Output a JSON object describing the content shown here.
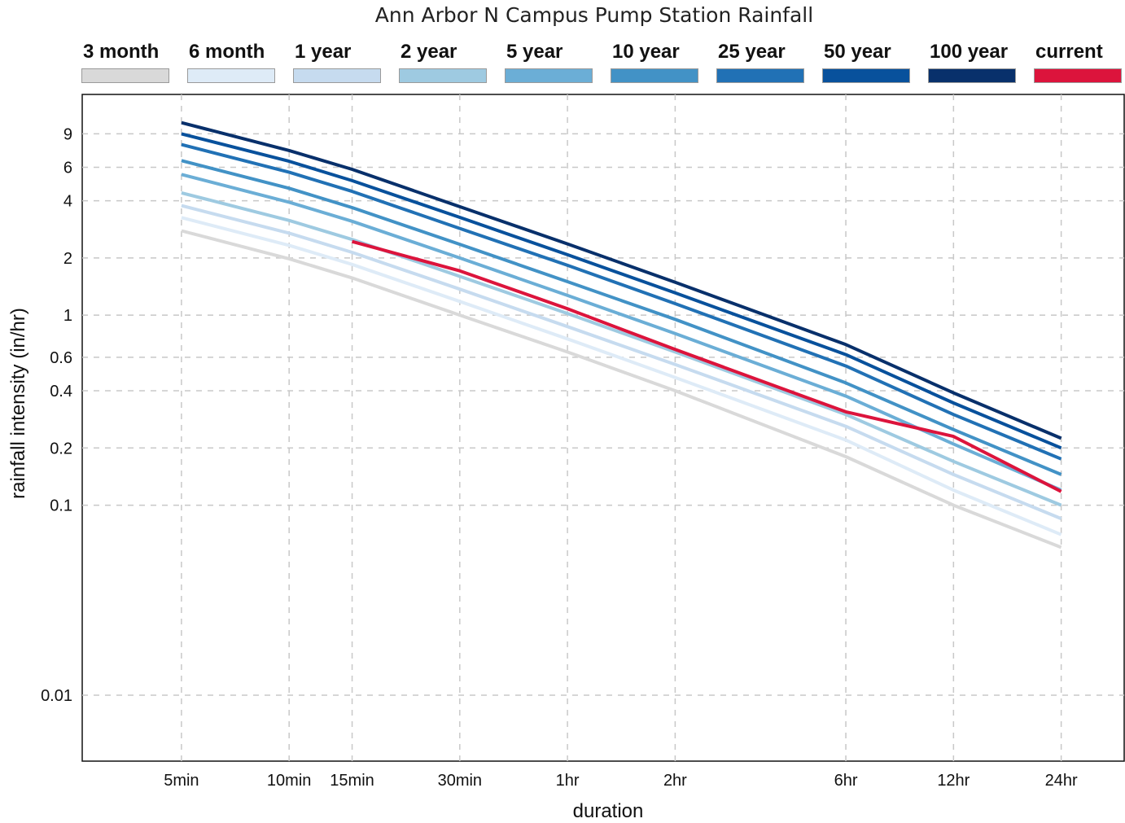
{
  "chart_data": {
    "type": "line",
    "title": "Ann Arbor N Campus Pump Station Rainfall",
    "xlabel": "duration",
    "ylabel": "rainfall intensity (in/hr)",
    "x_scale": "log",
    "y_scale": "log",
    "x_ticks": [
      {
        "label": "5min",
        "minutes": 5
      },
      {
        "label": "10min",
        "minutes": 10
      },
      {
        "label": "15min",
        "minutes": 15
      },
      {
        "label": "30min",
        "minutes": 30
      },
      {
        "label": "1hr",
        "minutes": 60
      },
      {
        "label": "2hr",
        "minutes": 120
      },
      {
        "label": "6hr",
        "minutes": 360
      },
      {
        "label": "12hr",
        "minutes": 720
      },
      {
        "label": "24hr",
        "minutes": 1440
      }
    ],
    "y_ticks": [
      {
        "label": "0.01",
        "value": 0.01
      },
      {
        "label": "0.1",
        "value": 0.1
      },
      {
        "label": "0.2",
        "value": 0.2
      },
      {
        "label": "0.4",
        "value": 0.4
      },
      {
        "label": "0.6",
        "value": 0.6
      },
      {
        "label": "1",
        "value": 1
      },
      {
        "label": "2",
        "value": 2
      },
      {
        "label": "4",
        "value": 4
      },
      {
        "label": "6",
        "value": 6
      },
      {
        "label": "9",
        "value": 9
      }
    ],
    "xlim": [
      2.64,
      2160
    ],
    "ylim": [
      0.0045,
      14.5
    ],
    "grid": true,
    "legend_position": "top",
    "series": [
      {
        "name": "3 month",
        "color": "#d9d9d9",
        "x": [
          5,
          10,
          15,
          30,
          60,
          120,
          360,
          720,
          1440
        ],
        "y": [
          2.78,
          1.98,
          1.57,
          1.0,
          0.64,
          0.4,
          0.18,
          0.1,
          0.06
        ]
      },
      {
        "name": "6 month",
        "color": "#deebf7",
        "x": [
          5,
          10,
          15,
          30,
          60,
          120,
          360,
          720,
          1440
        ],
        "y": [
          3.26,
          2.33,
          1.85,
          1.18,
          0.75,
          0.47,
          0.22,
          0.12,
          0.07
        ]
      },
      {
        "name": "1 year",
        "color": "#c6dbef",
        "x": [
          5,
          10,
          15,
          30,
          60,
          120,
          360,
          720,
          1440
        ],
        "y": [
          3.77,
          2.7,
          2.14,
          1.37,
          0.87,
          0.55,
          0.26,
          0.145,
          0.085
        ]
      },
      {
        "name": "2 year",
        "color": "#9ecae1",
        "x": [
          5,
          10,
          15,
          30,
          60,
          120,
          360,
          720,
          1440
        ],
        "y": [
          4.4,
          3.15,
          2.5,
          1.6,
          1.02,
          0.64,
          0.3,
          0.17,
          0.1
        ]
      },
      {
        "name": "5 year",
        "color": "#6baed6",
        "x": [
          5,
          10,
          15,
          30,
          60,
          120,
          360,
          720,
          1440
        ],
        "y": [
          5.5,
          3.93,
          3.12,
          2.0,
          1.27,
          0.8,
          0.375,
          0.21,
          0.12
        ]
      },
      {
        "name": "10 year",
        "color": "#4292c6",
        "x": [
          5,
          10,
          15,
          30,
          60,
          120,
          360,
          720,
          1440
        ],
        "y": [
          6.5,
          4.65,
          3.68,
          2.36,
          1.5,
          0.95,
          0.44,
          0.25,
          0.145
        ]
      },
      {
        "name": "25 year",
        "color": "#2171b5",
        "x": [
          5,
          10,
          15,
          30,
          60,
          120,
          360,
          720,
          1440
        ],
        "y": [
          7.9,
          5.65,
          4.48,
          2.86,
          1.83,
          1.15,
          0.54,
          0.3,
          0.175
        ]
      },
      {
        "name": "50 year",
        "color": "#08519c",
        "x": [
          5,
          10,
          15,
          30,
          60,
          120,
          360,
          720,
          1440
        ],
        "y": [
          9.0,
          6.45,
          5.1,
          3.27,
          2.08,
          1.31,
          0.62,
          0.345,
          0.2
        ]
      },
      {
        "name": "100 year",
        "color": "#08306b",
        "x": [
          5,
          10,
          15,
          30,
          60,
          120,
          360,
          720,
          1440
        ],
        "y": [
          10.3,
          7.35,
          5.85,
          3.72,
          2.37,
          1.49,
          0.7,
          0.39,
          0.225
        ]
      },
      {
        "name": "current",
        "color": "#dc143c",
        "x": [
          15,
          30,
          60,
          120,
          360,
          720,
          1440
        ],
        "y": [
          2.44,
          1.71,
          1.08,
          0.66,
          0.31,
          0.23,
          0.118
        ]
      }
    ]
  }
}
